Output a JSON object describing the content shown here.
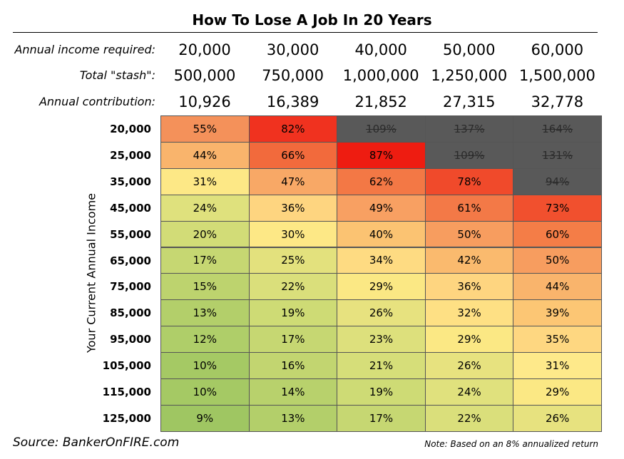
{
  "title": "How To Lose A Job In 20 Years",
  "header_rows": [
    {
      "label": "Annual income required:",
      "values": [
        "20,000",
        "30,000",
        "40,000",
        "50,000",
        "60,000"
      ]
    },
    {
      "label": "Total \"stash\":",
      "values": [
        "500,000",
        "750,000",
        "1,000,000",
        "1,250,000",
        "1,500,000"
      ]
    },
    {
      "label": "Annual contribution:",
      "values": [
        "10,926",
        "16,389",
        "21,852",
        "27,315",
        "32,778"
      ]
    }
  ],
  "row_axis_label": "Your Current Annual Income",
  "table": {
    "row_labels": [
      "20,000",
      "25,000",
      "35,000",
      "45,000",
      "55,000",
      "65,000",
      "75,000",
      "85,000",
      "95,000",
      "105,000",
      "115,000",
      "125,000"
    ],
    "rows": [
      [
        "55%",
        "82%",
        "109%",
        "137%",
        "164%"
      ],
      [
        "44%",
        "66%",
        "87%",
        "109%",
        "131%"
      ],
      [
        "31%",
        "47%",
        "62%",
        "78%",
        "94%"
      ],
      [
        "24%",
        "36%",
        "49%",
        "61%",
        "73%"
      ],
      [
        "20%",
        "30%",
        "40%",
        "50%",
        "60%"
      ],
      [
        "17%",
        "25%",
        "34%",
        "42%",
        "50%"
      ],
      [
        "15%",
        "22%",
        "29%",
        "36%",
        "44%"
      ],
      [
        "13%",
        "19%",
        "26%",
        "32%",
        "39%"
      ],
      [
        "12%",
        "17%",
        "23%",
        "29%",
        "35%"
      ],
      [
        "10%",
        "16%",
        "21%",
        "26%",
        "31%"
      ],
      [
        "10%",
        "14%",
        "19%",
        "24%",
        "29%"
      ],
      [
        "9%",
        "13%",
        "17%",
        "22%",
        "26%"
      ]
    ],
    "colors": [
      [
        "#f4915a",
        "#f0321f",
        "#595959",
        "#595959",
        "#595959"
      ],
      [
        "#f9b46c",
        "#f26a3c",
        "#ee1c11",
        "#595959",
        "#595959"
      ],
      [
        "#fde886",
        "#f8a866",
        "#f37845",
        "#f04a2b",
        "#595959"
      ],
      [
        "#dfe17d",
        "#fed580",
        "#f8a062",
        "#f37947",
        "#f1502e"
      ],
      [
        "#d2dc77",
        "#fde886",
        "#fbc372",
        "#f79d5f",
        "#f47d47"
      ],
      [
        "#c6d772",
        "#e3e17d",
        "#fedb82",
        "#faba6e",
        "#f79d5f"
      ],
      [
        "#bdd36e",
        "#dadf7b",
        "#fbe884",
        "#fed580",
        "#f9b46c"
      ],
      [
        "#b3cf6a",
        "#cedb75",
        "#e7e27f",
        "#fee084",
        "#fcc674"
      ],
      [
        "#afce69",
        "#c6d772",
        "#dde07c",
        "#fbe884",
        "#fed781"
      ],
      [
        "#a5c964",
        "#c2d570",
        "#d6de79",
        "#e7e27f",
        "#fee98a"
      ],
      [
        "#a5c964",
        "#b8d16c",
        "#cedb75",
        "#e0e17d",
        "#fbe884"
      ],
      [
        "#9fc662",
        "#b3cf6a",
        "#c6d772",
        "#dadf7b",
        "#e7e27f"
      ]
    ],
    "struck_color": "#595959"
  },
  "source": "Source: BankerOnFIRE.com",
  "note": "Note: Based on an 8% annualized return"
}
